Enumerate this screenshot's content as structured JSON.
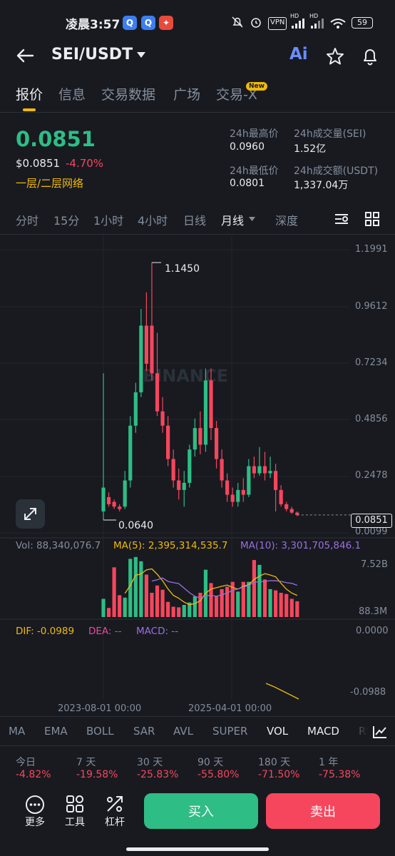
{
  "status_bar": {
    "time": "凌晨3:57",
    "battery": "59",
    "vpn": "VPN",
    "hd1": "HD",
    "hd2": "HD"
  },
  "header": {
    "pair": "SEI/USDT",
    "ai_label": "Ai"
  },
  "tabs": [
    {
      "label": "报价"
    },
    {
      "label": "信息"
    },
    {
      "label": "交易数据"
    },
    {
      "label": "广场"
    },
    {
      "label": "交易-X"
    }
  ],
  "new_badge": "New",
  "price": {
    "last": "0.0851",
    "usd": "$0.0851",
    "change": "-4.70%",
    "network": "一层/二层网络"
  },
  "stats": {
    "high_label": "24h最高价",
    "high_value": "0.0960",
    "vol_sei_label": "24h成交量(SEI)",
    "vol_sei_value": "1.52亿",
    "low_label": "24h最低价",
    "low_value": "0.0801",
    "vol_usdt_label": "24h成交额(USDT)",
    "vol_usdt_value": "1,337.04万"
  },
  "intervals": [
    {
      "label": "分时"
    },
    {
      "label": "15分"
    },
    {
      "label": "1小时"
    },
    {
      "label": "4小时"
    },
    {
      "label": "日线"
    },
    {
      "label": "月线"
    },
    {
      "label": "深度"
    }
  ],
  "chart_data": {
    "type": "candlestick",
    "price_axis_ticks": [
      "1.1991",
      "0.9612",
      "0.7234",
      "0.4856",
      "0.2478",
      "0.0099"
    ],
    "high_marker": "1.1450",
    "low_marker": "0.0640",
    "current_price_tag": "0.0851",
    "watermark": "BINANCE",
    "x_ticks": [
      "2023-08-01 00:00",
      "2025-04-01 00:00"
    ],
    "candles": [
      {
        "o": 0.1,
        "c": 0.2,
        "h": 0.68,
        "l": 0.064
      },
      {
        "o": 0.16,
        "c": 0.13,
        "h": 0.18,
        "l": 0.12
      },
      {
        "o": 0.14,
        "c": 0.12,
        "h": 0.15,
        "l": 0.11
      },
      {
        "o": 0.12,
        "c": 0.11,
        "h": 0.13,
        "l": 0.1
      },
      {
        "o": 0.12,
        "c": 0.23,
        "h": 0.27,
        "l": 0.11
      },
      {
        "o": 0.23,
        "c": 0.46,
        "h": 0.5,
        "l": 0.2
      },
      {
        "o": 0.46,
        "c": 0.6,
        "h": 0.64,
        "l": 0.43
      },
      {
        "o": 0.6,
        "c": 0.88,
        "h": 0.95,
        "l": 0.58
      },
      {
        "o": 0.88,
        "c": 0.72,
        "h": 1.02,
        "l": 0.69
      },
      {
        "o": 0.88,
        "c": 0.68,
        "h": 1.145,
        "l": 0.65
      },
      {
        "o": 0.68,
        "c": 0.52,
        "h": 0.85,
        "l": 0.5
      },
      {
        "o": 0.52,
        "c": 0.46,
        "h": 0.58,
        "l": 0.43
      },
      {
        "o": 0.46,
        "c": 0.32,
        "h": 0.5,
        "l": 0.29
      },
      {
        "o": 0.32,
        "c": 0.23,
        "h": 0.36,
        "l": 0.2
      },
      {
        "o": 0.23,
        "c": 0.19,
        "h": 0.28,
        "l": 0.15
      },
      {
        "o": 0.19,
        "c": 0.22,
        "h": 0.27,
        "l": 0.12
      },
      {
        "o": 0.22,
        "c": 0.36,
        "h": 0.38,
        "l": 0.2
      },
      {
        "o": 0.36,
        "c": 0.45,
        "h": 0.49,
        "l": 0.33
      },
      {
        "o": 0.45,
        "c": 0.38,
        "h": 0.52,
        "l": 0.34
      },
      {
        "o": 0.38,
        "c": 0.65,
        "h": 0.7,
        "l": 0.35
      },
      {
        "o": 0.65,
        "c": 0.45,
        "h": 0.7,
        "l": 0.4
      },
      {
        "o": 0.45,
        "c": 0.32,
        "h": 0.48,
        "l": 0.28
      },
      {
        "o": 0.32,
        "c": 0.23,
        "h": 0.36,
        "l": 0.2
      },
      {
        "o": 0.23,
        "c": 0.17,
        "h": 0.26,
        "l": 0.14
      },
      {
        "o": 0.17,
        "c": 0.14,
        "h": 0.2,
        "l": 0.12
      },
      {
        "o": 0.14,
        "c": 0.19,
        "h": 0.22,
        "l": 0.12
      },
      {
        "o": 0.19,
        "c": 0.17,
        "h": 0.24,
        "l": 0.14
      },
      {
        "o": 0.17,
        "c": 0.29,
        "h": 0.32,
        "l": 0.16
      },
      {
        "o": 0.29,
        "c": 0.26,
        "h": 0.33,
        "l": 0.24
      },
      {
        "o": 0.26,
        "c": 0.29,
        "h": 0.37,
        "l": 0.25
      },
      {
        "o": 0.29,
        "c": 0.26,
        "h": 0.35,
        "l": 0.23
      },
      {
        "o": 0.26,
        "c": 0.27,
        "h": 0.33,
        "l": 0.24
      },
      {
        "o": 0.27,
        "c": 0.19,
        "h": 0.3,
        "l": 0.1
      },
      {
        "o": 0.19,
        "c": 0.13,
        "h": 0.21,
        "l": 0.12
      },
      {
        "o": 0.13,
        "c": 0.11,
        "h": 0.14,
        "l": 0.1
      },
      {
        "o": 0.11,
        "c": 0.095,
        "h": 0.12,
        "l": 0.09
      },
      {
        "o": 0.095,
        "c": 0.085,
        "h": 0.1,
        "l": 0.08
      }
    ],
    "volume": {
      "vol_label": "Vol: 88,340,076.7",
      "ma5_label": "MA(5): 2,395,314,535.7",
      "ma10_label": "MA(10): 3,301,705,846.1",
      "axis_top": "7.52B",
      "axis_bottom": "88.3M",
      "heights": [
        0.3,
        0.15,
        0.82,
        0.36,
        0.32,
        0.96,
        0.99,
        0.92,
        0.7,
        0.4,
        0.52,
        0.45,
        0.25,
        0.17,
        0.16,
        0.2,
        0.24,
        0.34,
        0.4,
        0.78,
        0.56,
        0.34,
        0.46,
        0.5,
        0.58,
        0.42,
        0.58,
        0.58,
        0.94,
        0.86,
        0.62,
        0.46,
        0.44,
        0.4,
        0.38,
        0.3,
        0.26
      ]
    },
    "macd": {
      "dif_label": "DIF: -0.0989",
      "dea_label": "DEA: --",
      "macd_label": "MACD: --",
      "axis_top": "0.0000",
      "axis_bottom": "-0.0988"
    }
  },
  "indicators": [
    {
      "label": "MA"
    },
    {
      "label": "EMA"
    },
    {
      "label": "BOLL"
    },
    {
      "label": "SAR"
    },
    {
      "label": "AVL"
    },
    {
      "label": "SUPER"
    },
    {
      "label": "VOL"
    },
    {
      "label": "MACD"
    },
    {
      "label": "RS"
    }
  ],
  "performance": [
    {
      "label": "今日",
      "value": "-4.82%"
    },
    {
      "label": "7 天",
      "value": "-19.58%"
    },
    {
      "label": "30 天",
      "value": "-25.83%"
    },
    {
      "label": "90 天",
      "value": "-55.80%"
    },
    {
      "label": "180 天",
      "value": "-71.50%"
    },
    {
      "label": "1 年",
      "value": "-75.38%"
    }
  ],
  "bottom_bar": {
    "more": "更多",
    "tools": "工具",
    "leverage": "杠杆",
    "buy": "买入",
    "sell": "卖出"
  },
  "colors": {
    "up": "#2ebd85",
    "down": "#f6465d",
    "accent": "#f0b90b",
    "ma5": "#f0b90b",
    "ma10": "#9b6fe0"
  }
}
